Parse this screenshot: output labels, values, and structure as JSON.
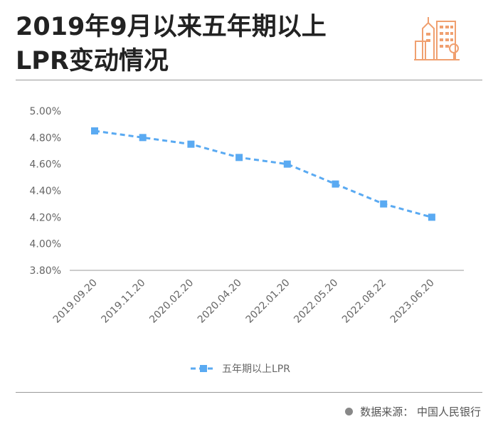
{
  "header": {
    "title_line1": "2019年9月以来五年期以上",
    "title_line2": "LPR变动情况"
  },
  "colors": {
    "series": "#5aaaf2",
    "logo": "#f0a070",
    "axis": "#bbbbbb",
    "text": "#666666"
  },
  "icon": "city-buildings-icon",
  "chart_data": {
    "type": "line",
    "title": "2019年9月以来五年期以上LPR变动情况",
    "xlabel": "",
    "ylabel": "",
    "categories": [
      "2019.09.20",
      "2019.11.20",
      "2020.02.20",
      "2020.04.20",
      "2022.01.20",
      "2022.05.20",
      "2022.08.22",
      "2023.06.20"
    ],
    "series": [
      {
        "name": "五年期以上LPR",
        "values": [
          4.85,
          4.8,
          4.75,
          4.65,
          4.6,
          4.45,
          4.3,
          4.2
        ]
      }
    ],
    "ylim": [
      3.8,
      5.0
    ],
    "yticks": [
      "5.00%",
      "4.80%",
      "4.60%",
      "4.40%",
      "4.20%",
      "4.00%",
      "3.80%"
    ],
    "legend": "bottom",
    "grid": false,
    "line_style": "dashed"
  },
  "source": {
    "text": "数据来源： 中国人民银行"
  }
}
